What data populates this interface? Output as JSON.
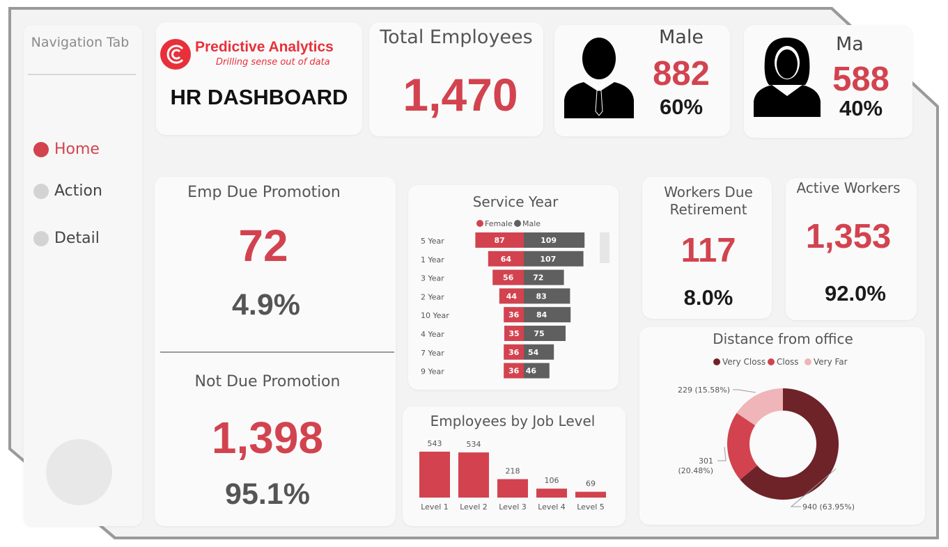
{
  "nav": {
    "title": "Navigation Tab",
    "items": [
      {
        "label": "Home",
        "active": true
      },
      {
        "label": "Action",
        "active": false
      },
      {
        "label": "Detail",
        "active": false
      }
    ]
  },
  "brand": {
    "name": "Predictive Analytics",
    "tagline": "Drilling sense out of data",
    "dashboard_title": "HR DASHBOARD",
    "color": "#e8303a"
  },
  "kpis": {
    "total_employees": {
      "label": "Total Employees",
      "value": "1,470"
    },
    "male": {
      "label": "Male",
      "value": "882",
      "pct": "60%",
      "icon": "male-user-icon"
    },
    "female": {
      "label": "Ma",
      "value": "588",
      "pct": "40%",
      "icon": "female-user-icon"
    },
    "emp_due_promotion": {
      "label": "Emp Due Promotion",
      "value": "72",
      "pct": "4.9%"
    },
    "not_due_promotion": {
      "label": "Not Due Promotion",
      "value": "1,398",
      "pct": "95.1%"
    },
    "workers_due_retirement": {
      "label": "Workers Due Retirement",
      "value": "117",
      "pct": "8.0%"
    },
    "active_workers": {
      "label": "Active Workers",
      "value": "1,353",
      "pct": "92.0%"
    }
  },
  "colors": {
    "accent": "#d2434f",
    "male_bar": "#5f5f5f",
    "very_close": "#6e2329",
    "close": "#d2434f",
    "very_far": "#efb5b9"
  },
  "chart_data": [
    {
      "type": "bar",
      "orientation": "horizontal-diverging",
      "title": "Service Year",
      "legend_position": "top-center",
      "categories": [
        "5 Year",
        "1 Year",
        "3 Year",
        "2 Year",
        "10 Year",
        "4 Year",
        "7 Year",
        "9 Year"
      ],
      "series": [
        {
          "name": "Female",
          "values": [
            87,
            64,
            56,
            44,
            36,
            35,
            36,
            36
          ]
        },
        {
          "name": "Male",
          "values": [
            109,
            107,
            72,
            83,
            84,
            75,
            54,
            46
          ]
        }
      ]
    },
    {
      "type": "bar",
      "title": "Employees by Job Level",
      "categories": [
        "Level 1",
        "Level 2",
        "Level 3",
        "Level 4",
        "Level 5"
      ],
      "values": [
        543,
        534,
        218,
        106,
        69
      ]
    },
    {
      "type": "pie",
      "variant": "donut",
      "title": "Distance from office",
      "legend_position": "top-center",
      "categories": [
        "Very Closs",
        "Closs",
        "Very Far"
      ],
      "values": [
        940,
        301,
        229
      ],
      "labels": [
        "940 (63.95%)",
        "301 (20.48%)",
        "229 (15.58%)"
      ]
    }
  ]
}
